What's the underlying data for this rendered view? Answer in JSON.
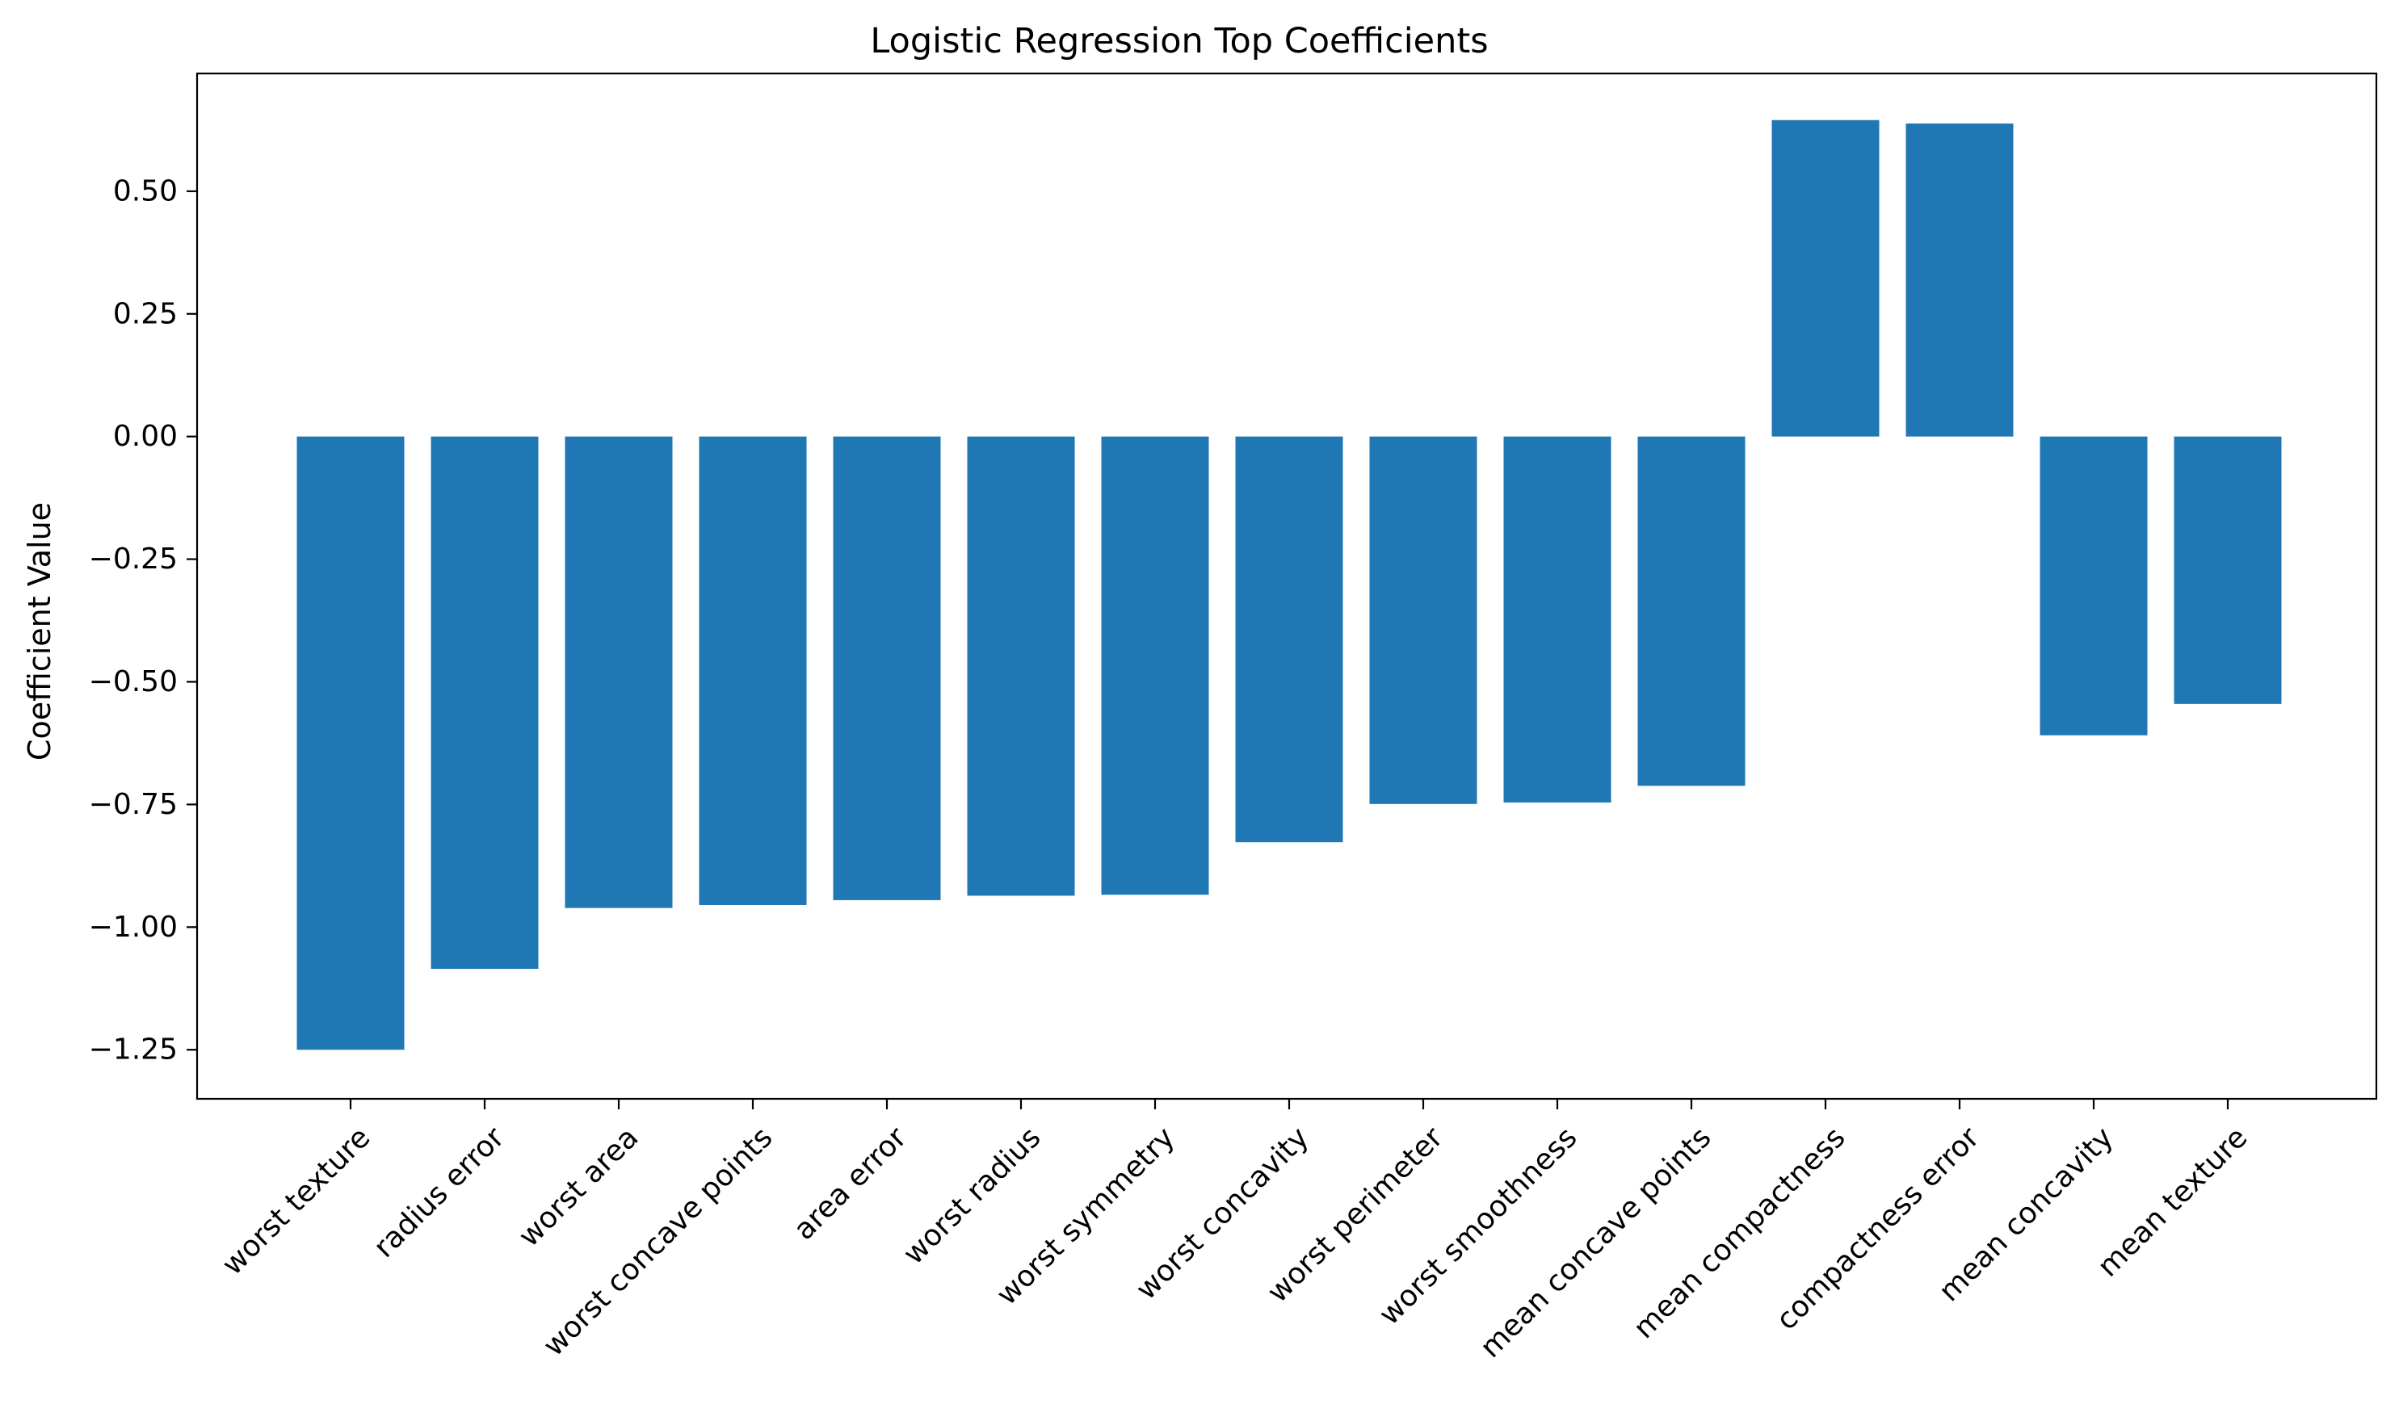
{
  "chart_data": {
    "type": "bar",
    "title": "Logistic Regression Top Coefficients",
    "xlabel": "",
    "ylabel": "Coefficient Value",
    "categories": [
      "worst texture",
      "radius error",
      "worst area",
      "worst concave points",
      "area error",
      "worst radius",
      "worst symmetry",
      "worst concavity",
      "worst perimeter",
      "worst smoothness",
      "mean concave points",
      "mean compactness",
      "compactness error",
      "mean concavity",
      "mean texture"
    ],
    "values": [
      -1.25,
      -1.085,
      -0.961,
      -0.955,
      -0.945,
      -0.936,
      -0.934,
      -0.827,
      -0.749,
      -0.746,
      -0.712,
      0.645,
      0.638,
      -0.609,
      -0.545
    ],
    "ylim": [
      -1.35,
      0.74
    ],
    "yticks": [
      {
        "value": 0.5,
        "label": "0.50"
      },
      {
        "value": 0.25,
        "label": "0.25"
      },
      {
        "value": 0.0,
        "label": "0.00"
      },
      {
        "value": -0.25,
        "label": "−0.25"
      },
      {
        "value": -0.5,
        "label": "−0.50"
      },
      {
        "value": -0.75,
        "label": "−0.75"
      },
      {
        "value": -1.0,
        "label": "−1.00"
      },
      {
        "value": -1.25,
        "label": "−1.25"
      }
    ],
    "bar_color": "#1f77b4",
    "grid": false,
    "legend": "none"
  }
}
